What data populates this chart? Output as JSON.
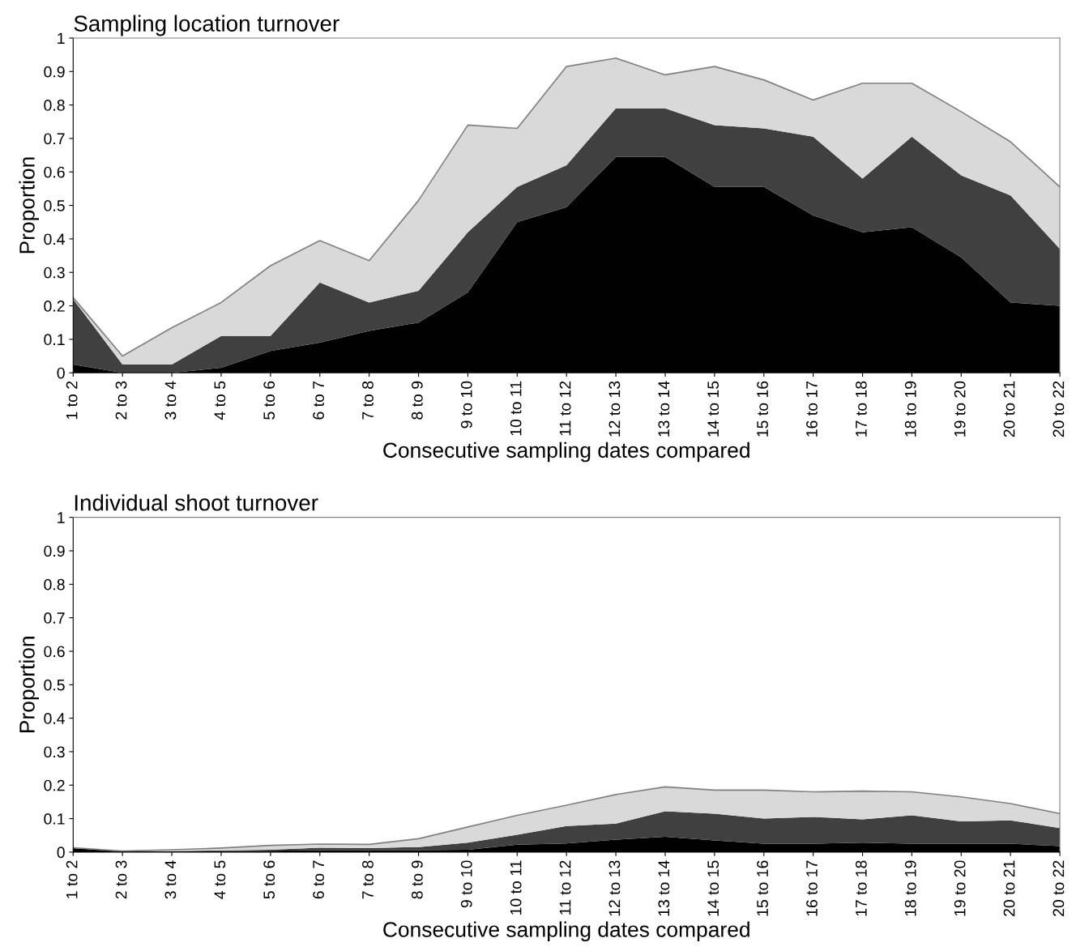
{
  "chart_data": [
    {
      "type": "area",
      "stacked": true,
      "title": "Sampling location turnover",
      "xlabel": "Consecutive sampling dates compared",
      "ylabel": "Proportion",
      "categories": [
        "1 to 2",
        "2 to 3",
        "3 to 4",
        "4 to 5",
        "5 to 6",
        "6 to 7",
        "7 to 8",
        "8 to 9",
        "9 to 10",
        "10 to 11",
        "11 to 12",
        "12 to 13",
        "13 to 14",
        "14 to 15",
        "15 to 16",
        "16 to 17",
        "17 to 18",
        "18 to 19",
        "19 to 20",
        "20 to 21",
        "20 to 22"
      ],
      "series": [
        {
          "color": "#000000",
          "values": [
            0.025,
            0,
            0,
            0.015,
            0.065,
            0.09,
            0.125,
            0.15,
            0.24,
            0.45,
            0.495,
            0.645,
            0.645,
            0.555,
            0.555,
            0.47,
            0.42,
            0.435,
            0.345,
            0.21,
            0.2
          ]
        },
        {
          "color": "#404040",
          "values": [
            0.195,
            0.025,
            0.025,
            0.095,
            0.045,
            0.18,
            0.085,
            0.095,
            0.18,
            0.105,
            0.125,
            0.145,
            0.145,
            0.185,
            0.175,
            0.235,
            0.16,
            0.27,
            0.245,
            0.32,
            0.17
          ]
        },
        {
          "color": "#d9d9d9",
          "values": [
            0.005,
            0.025,
            0.11,
            0.1,
            0.21,
            0.125,
            0.125,
            0.27,
            0.32,
            0.175,
            0.295,
            0.15,
            0.1,
            0.175,
            0.145,
            0.11,
            0.285,
            0.16,
            0.19,
            0.16,
            0.185
          ]
        }
      ],
      "ylim": [
        0,
        1
      ],
      "yticks": [
        0,
        {
          "value": 0.1,
          "label": "0.1"
        },
        {
          "value": 0.2,
          "label": "0.2"
        },
        {
          "value": 0.3,
          "label": "0.3"
        },
        {
          "value": 0.4,
          "label": "0.4"
        },
        {
          "value": 0.5,
          "label": "0.5"
        },
        {
          "value": 0.6,
          "label": "0.6"
        },
        {
          "value": 0.7,
          "label": "0.7"
        },
        {
          "value": 0.8,
          "label": "0.8"
        },
        {
          "value": 0.9,
          "label": "0.9"
        },
        1
      ],
      "grid": false
    },
    {
      "type": "area",
      "stacked": true,
      "title": "Individual shoot turnover",
      "xlabel": "Consecutive sampling dates compared",
      "ylabel": "Proportion",
      "categories": [
        "1 to 2",
        "2 to 3",
        "3 to 4",
        "4 to 5",
        "5 to 6",
        "6 to 7",
        "7 to 8",
        "8 to 9",
        "9 to 10",
        "10 to 11",
        "11 to 12",
        "12 to 13",
        "13 to 14",
        "14 to 15",
        "15 to 16",
        "16 to 17",
        "17 to 18",
        "18 to 19",
        "19 to 20",
        "20 to 21",
        "20 to 22"
      ],
      "series": [
        {
          "color": "#000000",
          "values": [
            0.012,
            0.002,
            0.002,
            0.003,
            0.004,
            0.006,
            0.006,
            0.006,
            0.007,
            0.022,
            0.026,
            0.037,
            0.046,
            0.035,
            0.025,
            0.025,
            0.028,
            0.025,
            0.025,
            0.025,
            0.018
          ]
        },
        {
          "color": "#404040",
          "values": [
            0,
            0,
            0.001,
            0.002,
            0.003,
            0.007,
            0.006,
            0.009,
            0.021,
            0.03,
            0.052,
            0.048,
            0.076,
            0.08,
            0.075,
            0.08,
            0.07,
            0.085,
            0.067,
            0.07,
            0.054
          ]
        },
        {
          "color": "#d9d9d9",
          "values": [
            0.001,
            0.001,
            0.004,
            0.007,
            0.013,
            0.011,
            0.011,
            0.025,
            0.047,
            0.058,
            0.062,
            0.087,
            0.073,
            0.07,
            0.085,
            0.075,
            0.084,
            0.07,
            0.073,
            0.05,
            0.043
          ]
        }
      ],
      "ylim": [
        0,
        1
      ],
      "yticks": [
        0,
        {
          "value": 0.1,
          "label": "0.1"
        },
        {
          "value": 0.2,
          "label": "0.2"
        },
        {
          "value": 0.3,
          "label": "0.3"
        },
        {
          "value": 0.4,
          "label": "0.4"
        },
        {
          "value": 0.5,
          "label": "0.5"
        },
        {
          "value": 0.6,
          "label": "0.6"
        },
        {
          "value": 0.7,
          "label": "0.7"
        },
        {
          "value": 0.8,
          "label": "0.8"
        },
        {
          "value": 0.9,
          "label": "0.9"
        },
        1
      ],
      "grid": false
    }
  ]
}
